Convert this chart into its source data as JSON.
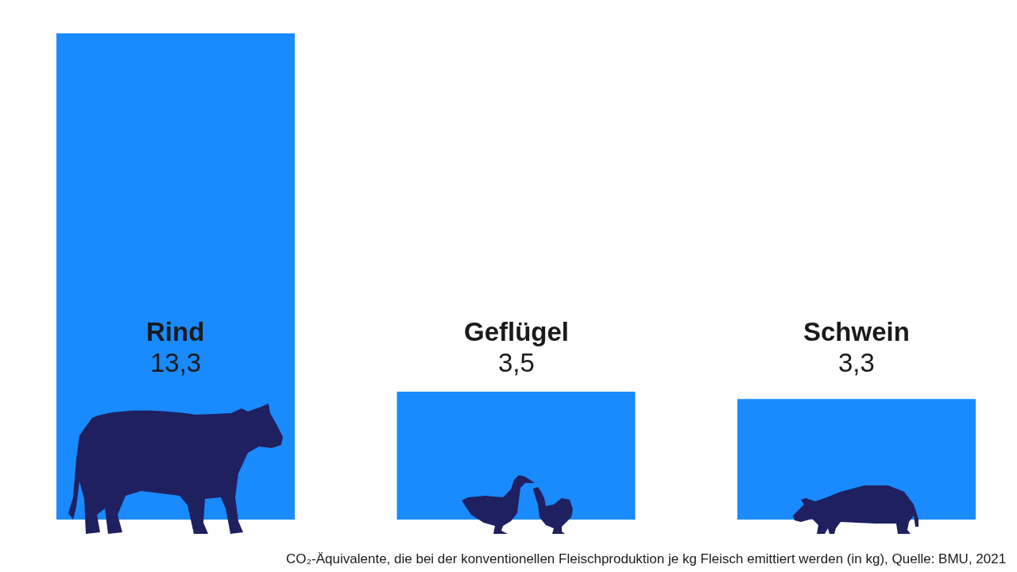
{
  "chart_data": {
    "type": "bar",
    "categories": [
      "Rind",
      "Geflügel",
      "Schwein"
    ],
    "values": [
      13.3,
      3.5,
      3.3
    ],
    "value_labels": [
      "13,3",
      "3,5",
      "3,3"
    ],
    "color": "#1a8aff",
    "annotations": [
      "CO₂-Äquivalente, die bei der konventionellen Fleischproduktion je kg Fleisch emittiert werden (in kg), Quelle: BMU, 2021"
    ]
  }
}
